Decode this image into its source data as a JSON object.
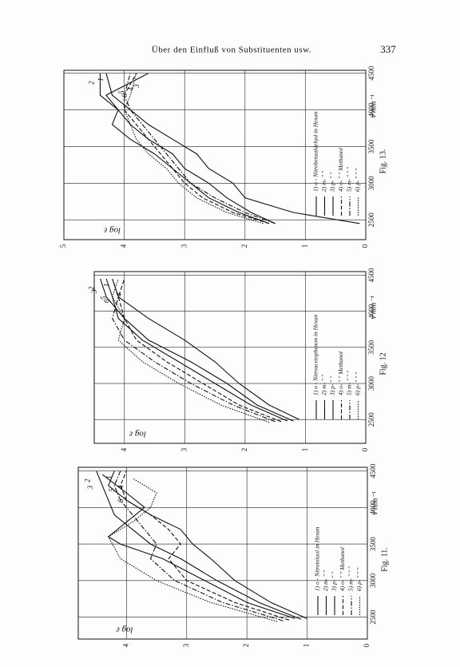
{
  "header": {
    "title": "Über den Einfluß von Substituenten usw.",
    "page_number": "337"
  },
  "chart_data": [
    {
      "type": "line",
      "caption": "Fig. 11.",
      "x_label": "ν'mm⁻¹",
      "y_label": "log ε",
      "xlim": [
        2200,
        4550
      ],
      "ylim": [
        0,
        4.8
      ],
      "xticks": [
        2500,
        3000,
        3500,
        4000,
        4500
      ],
      "yticks": [
        0,
        1,
        2,
        3,
        4
      ],
      "grid": true,
      "series": [
        {
          "name": "1",
          "label": "1) o - Nitrotoluol in Hexan",
          "color": "#111",
          "style": "solid",
          "x": [
            2480,
            2700,
            3000,
            3300,
            3500,
            3700,
            3900,
            4100,
            4300,
            4500
          ],
          "values": [
            1.0,
            1.6,
            2.2,
            2.6,
            2.9,
            3.1,
            3.6,
            4.0,
            4.3,
            4.2
          ]
        },
        {
          "name": "2",
          "label": "2) m-   ″   ″",
          "color": "#111",
          "style": "solid",
          "x": [
            2470,
            2700,
            3000,
            3300,
            3500,
            3700,
            3900,
            4100,
            4300,
            4500
          ],
          "values": [
            1.1,
            1.8,
            2.5,
            3.1,
            3.6,
            3.9,
            4.2,
            4.3,
            4.4,
            4.5
          ]
        },
        {
          "name": "3",
          "label": "3) p-   ″   ″",
          "color": "#111",
          "style": "solid",
          "x": [
            2480,
            2700,
            3000,
            3300,
            3500,
            3600,
            3800,
            4000,
            4200,
            4450
          ],
          "values": [
            1.2,
            2.0,
            2.7,
            3.4,
            4.1,
            4.3,
            4.0,
            3.7,
            4.0,
            4.4
          ]
        },
        {
          "name": "4",
          "label": "4) o-   ″   ″  Methanol",
          "color": "#111",
          "style": "dashed",
          "x": [
            2460,
            2700,
            3000,
            3300,
            3500,
            3700,
            3900,
            4100,
            4300,
            4500
          ],
          "values": [
            1.3,
            2.2,
            3.0,
            3.3,
            3.1,
            3.3,
            3.6,
            4.0,
            4.1,
            4.0
          ]
        },
        {
          "name": "5",
          "label": "5) m-   ″   ″   ″",
          "color": "#111",
          "style": "dashdot",
          "x": [
            2450,
            2700,
            3000,
            3300,
            3500,
            3700,
            3900,
            4100,
            4300,
            4500
          ],
          "values": [
            1.4,
            2.4,
            3.2,
            3.6,
            3.5,
            3.7,
            3.9,
            4.1,
            4.2,
            4.1
          ]
        },
        {
          "name": "6",
          "label": "6) p-   ″   ″   ″",
          "color": "#111",
          "style": "dotted",
          "x": [
            2440,
            2700,
            3000,
            3300,
            3600,
            3800,
            4000,
            4200,
            4400
          ],
          "values": [
            1.5,
            2.6,
            3.5,
            4.1,
            4.3,
            3.9,
            3.6,
            3.5,
            3.9
          ]
        }
      ]
    },
    {
      "type": "line",
      "caption": "Fig. 12",
      "x_label": "ν'mm⁻¹",
      "y_label": "log ε",
      "xlim": [
        2170,
        4550
      ],
      "ylim": [
        0,
        4.5
      ],
      "xticks": [
        2500,
        3000,
        3500,
        4000,
        4500
      ],
      "yticks": [
        0,
        1,
        2,
        3,
        4
      ],
      "grid": true,
      "series": [
        {
          "name": "1",
          "label": "1) o - Nitroacetophenon in Hexan",
          "color": "#111",
          "style": "solid",
          "x": [
            2500,
            2700,
            3000,
            3300,
            3600,
            3900,
            4200,
            4450
          ],
          "values": [
            1.1,
            1.6,
            2.1,
            2.5,
            3.0,
            3.6,
            4.1,
            4.2
          ]
        },
        {
          "name": "2",
          "label": "2) m-   ″   ″",
          "color": "#111",
          "style": "solid",
          "x": [
            2480,
            2700,
            3000,
            3300,
            3600,
            3900,
            4200,
            4450
          ],
          "values": [
            1.2,
            1.8,
            2.3,
            2.9,
            3.6,
            4.0,
            4.3,
            4.4
          ]
        },
        {
          "name": "3",
          "label": "3) p-   ″   ″",
          "color": "#111",
          "style": "solid",
          "x": [
            2480,
            2700,
            3000,
            3300,
            3600,
            3900,
            4200,
            4450
          ],
          "values": [
            1.3,
            1.9,
            2.5,
            3.1,
            3.7,
            4.1,
            4.2,
            4.3
          ]
        },
        {
          "name": "4",
          "label": "4) o-   ″   ″  Methanol",
          "color": "#111",
          "style": "dashed",
          "x": [
            2470,
            2700,
            3000,
            3300,
            3600,
            3900,
            4200,
            4450
          ],
          "values": [
            1.4,
            2.1,
            2.7,
            3.3,
            3.8,
            4.0,
            4.1,
            4.0
          ]
        },
        {
          "name": "5",
          "label": "5) m-   ″   ″   ″",
          "color": "#111",
          "style": "dashdot",
          "x": [
            2470,
            2700,
            3000,
            3300,
            3600,
            3900,
            4200,
            4450
          ],
          "values": [
            1.5,
            2.2,
            2.9,
            3.5,
            4.0,
            4.2,
            4.1,
            4.2
          ]
        },
        {
          "name": "6",
          "label": "6) p-   ″   ″   ″",
          "color": "#111",
          "style": "dotted",
          "x": [
            2460,
            2700,
            3000,
            3300,
            3600,
            3900,
            4200,
            4450
          ],
          "values": [
            1.6,
            2.4,
            3.1,
            3.7,
            4.1,
            4.0,
            4.2,
            4.1
          ]
        }
      ]
    },
    {
      "type": "line",
      "caption": "Fig. 13.",
      "x_label": "ν'mm⁻¹",
      "y_label": "log ε",
      "xlim": [
        2230,
        4540
      ],
      "ylim": [
        0,
        5
      ],
      "xticks": [
        2500,
        3000,
        3500,
        4000,
        4500
      ],
      "yticks": [
        0,
        1,
        2,
        3,
        4,
        5
      ],
      "grid": true,
      "series": [
        {
          "name": "1",
          "label": "1) o - Nitrobenzaldehyd in Hexan",
          "color": "#111",
          "style": "solid",
          "x": [
            2450,
            2600,
            2800,
            3000,
            3200,
            3400,
            3600,
            3800,
            4000,
            4200,
            4500
          ],
          "values": [
            0.1,
            1.2,
            2.0,
            2.2,
            2.6,
            2.8,
            3.2,
            3.6,
            3.9,
            4.2,
            4.3
          ]
        },
        {
          "name": "2",
          "label": "2) m-   ″   ″",
          "color": "#111",
          "style": "solid",
          "x": [
            2450,
            2600,
            2800,
            3000,
            3200,
            3400,
            3600,
            3800,
            4000,
            4200,
            4500
          ],
          "values": [
            1.5,
            1.9,
            2.3,
            2.6,
            3.0,
            3.2,
            3.6,
            3.9,
            4.1,
            4.4,
            4.4
          ]
        },
        {
          "name": "3",
          "label": "3) p-   ″   ″",
          "color": "#111",
          "style": "solid",
          "x": [
            2450,
            2600,
            2800,
            3000,
            3200,
            3400,
            3600,
            3800,
            4000,
            4200,
            4500
          ],
          "values": [
            1.6,
            2.1,
            2.6,
            2.9,
            3.2,
            3.5,
            3.9,
            4.2,
            4.1,
            4.3,
            3.6
          ]
        },
        {
          "name": "4",
          "label": "4) o-   ″   ″  Methanol",
          "color": "#111",
          "style": "dashed",
          "x": [
            2450,
            2600,
            2800,
            3000,
            3200,
            3400,
            3600,
            3800,
            4000,
            4200,
            4500
          ],
          "values": [
            1.6,
            2.2,
            2.7,
            3.0,
            3.2,
            3.4,
            3.6,
            3.8,
            4.0,
            4.0,
            3.8
          ]
        },
        {
          "name": "5",
          "label": "5) m-   ″   ″   ″",
          "color": "#111",
          "style": "dashdot",
          "x": [
            2450,
            2600,
            2800,
            3000,
            3200,
            3400,
            3600,
            3800,
            4000,
            4200,
            4500
          ],
          "values": [
            1.5,
            2.0,
            2.5,
            2.9,
            3.1,
            3.3,
            3.5,
            3.7,
            3.9,
            4.0,
            3.9
          ]
        },
        {
          "name": "6",
          "label": "6) p-   ″   ″   ″",
          "color": "#111",
          "style": "dotted",
          "x": [
            2450,
            2600,
            2800,
            3000,
            3200,
            3400,
            3600,
            3800,
            4000,
            4200,
            4500
          ],
          "values": [
            1.7,
            2.3,
            2.8,
            3.1,
            3.3,
            3.6,
            3.8,
            3.9,
            4.0,
            3.9,
            3.8
          ]
        }
      ]
    }
  ]
}
